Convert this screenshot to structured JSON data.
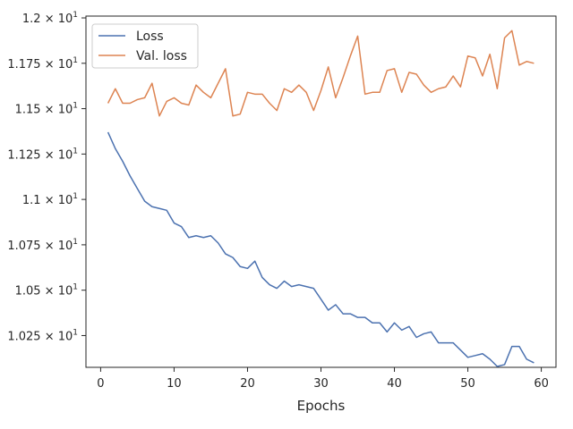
{
  "chart_data": {
    "type": "line",
    "title": "",
    "xlabel": "Epochs",
    "ylabel": "",
    "xlim": [
      -2,
      62
    ],
    "ylim": [
      10.075,
      12.01
    ],
    "grid": false,
    "legend_position": "top-left",
    "x_ticks": [
      0,
      10,
      20,
      30,
      40,
      50,
      60
    ],
    "x_tick_labels": [
      "0",
      "10",
      "20",
      "30",
      "40",
      "50",
      "60"
    ],
    "y_ticks": [
      10.25,
      10.5,
      10.75,
      11.0,
      11.25,
      11.5,
      11.75,
      12.0
    ],
    "y_tick_labels": [
      {
        "mantissa": "1.025 × 10",
        "exp": "1"
      },
      {
        "mantissa": "1.05 × 10",
        "exp": "1"
      },
      {
        "mantissa": "1.075 × 10",
        "exp": "1"
      },
      {
        "mantissa": "1.1 × 10",
        "exp": "1"
      },
      {
        "mantissa": "1.125 × 10",
        "exp": "1"
      },
      {
        "mantissa": "1.15 × 10",
        "exp": "1"
      },
      {
        "mantissa": "1.175 × 10",
        "exp": "1"
      },
      {
        "mantissa": "1.2 × 10",
        "exp": "1"
      }
    ],
    "x": [
      1,
      2,
      3,
      4,
      5,
      6,
      7,
      8,
      9,
      10,
      11,
      12,
      13,
      14,
      15,
      16,
      17,
      18,
      19,
      20,
      21,
      22,
      23,
      24,
      25,
      26,
      27,
      28,
      29,
      30,
      31,
      32,
      33,
      34,
      35,
      36,
      37,
      38,
      39,
      40,
      41,
      42,
      43,
      44,
      45,
      46,
      47,
      48,
      49,
      50,
      51,
      52,
      53,
      54,
      55,
      56,
      57,
      58,
      59
    ],
    "series": [
      {
        "name": "Loss",
        "color": "#4c72b0",
        "values": [
          11.37,
          11.28,
          11.21,
          11.13,
          11.06,
          10.99,
          10.96,
          10.95,
          10.94,
          10.87,
          10.85,
          10.79,
          10.8,
          10.79,
          10.8,
          10.76,
          10.7,
          10.68,
          10.63,
          10.62,
          10.66,
          10.57,
          10.53,
          10.51,
          10.55,
          10.52,
          10.53,
          10.52,
          10.51,
          10.45,
          10.39,
          10.42,
          10.37,
          10.37,
          10.35,
          10.35,
          10.32,
          10.32,
          10.27,
          10.32,
          10.28,
          10.3,
          10.24,
          10.26,
          10.27,
          10.21,
          10.21,
          10.21,
          10.17,
          10.13,
          10.14,
          10.15,
          10.12,
          10.08,
          10.09,
          10.19,
          10.19,
          10.12,
          10.1
        ]
      },
      {
        "name": "Val. loss",
        "color": "#dd8452",
        "values": [
          11.53,
          11.61,
          11.53,
          11.53,
          11.55,
          11.56,
          11.64,
          11.46,
          11.54,
          11.56,
          11.53,
          11.52,
          11.63,
          11.59,
          11.56,
          11.64,
          11.72,
          11.46,
          11.47,
          11.59,
          11.58,
          11.58,
          11.53,
          11.49,
          11.61,
          11.59,
          11.63,
          11.59,
          11.49,
          11.6,
          11.73,
          11.56,
          11.67,
          11.79,
          11.9,
          11.58,
          11.59,
          11.59,
          11.71,
          11.72,
          11.59,
          11.7,
          11.69,
          11.63,
          11.59,
          11.61,
          11.62,
          11.68,
          11.62,
          11.79,
          11.78,
          11.68,
          11.8,
          11.61,
          11.89,
          11.93,
          11.74,
          11.76,
          11.75
        ]
      }
    ]
  }
}
